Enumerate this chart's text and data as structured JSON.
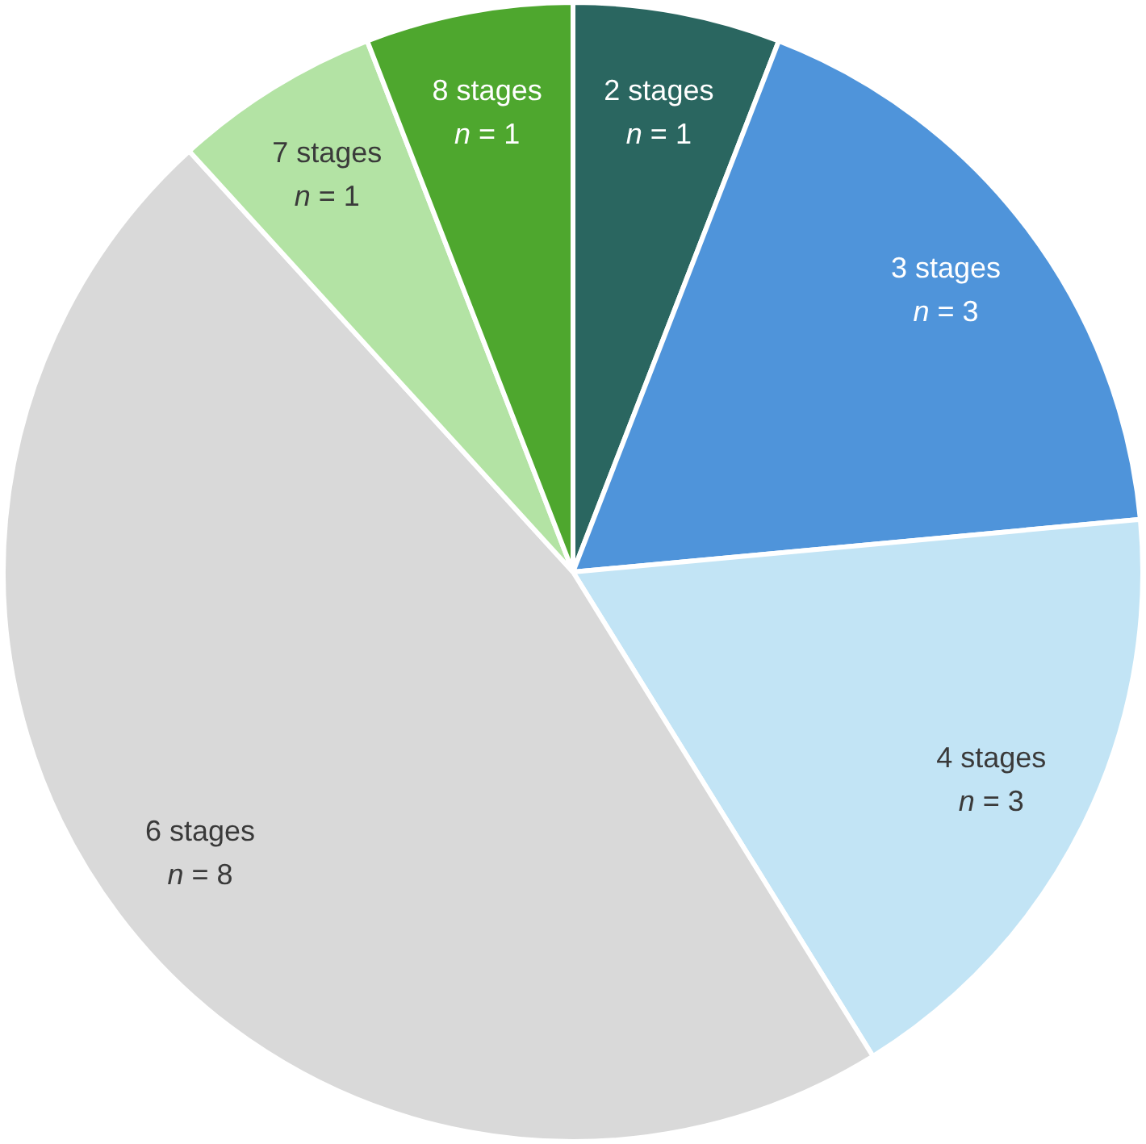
{
  "chart_data": {
    "type": "pie",
    "categories": [
      "2 stages",
      "3 stages",
      "4 stages",
      "6 stages",
      "7 stages",
      "8 stages"
    ],
    "values": [
      1,
      3,
      3,
      8,
      1,
      1
    ],
    "colors": [
      "#2a6660",
      "#4f94da",
      "#c2e4f5",
      "#d9d9d9",
      "#b3e3a4",
      "#4ea72e"
    ],
    "value_labels": [
      "n = 1",
      "n = 3",
      "n = 3",
      "n = 8",
      "n = 1",
      "n = 1"
    ],
    "legend": false
  }
}
